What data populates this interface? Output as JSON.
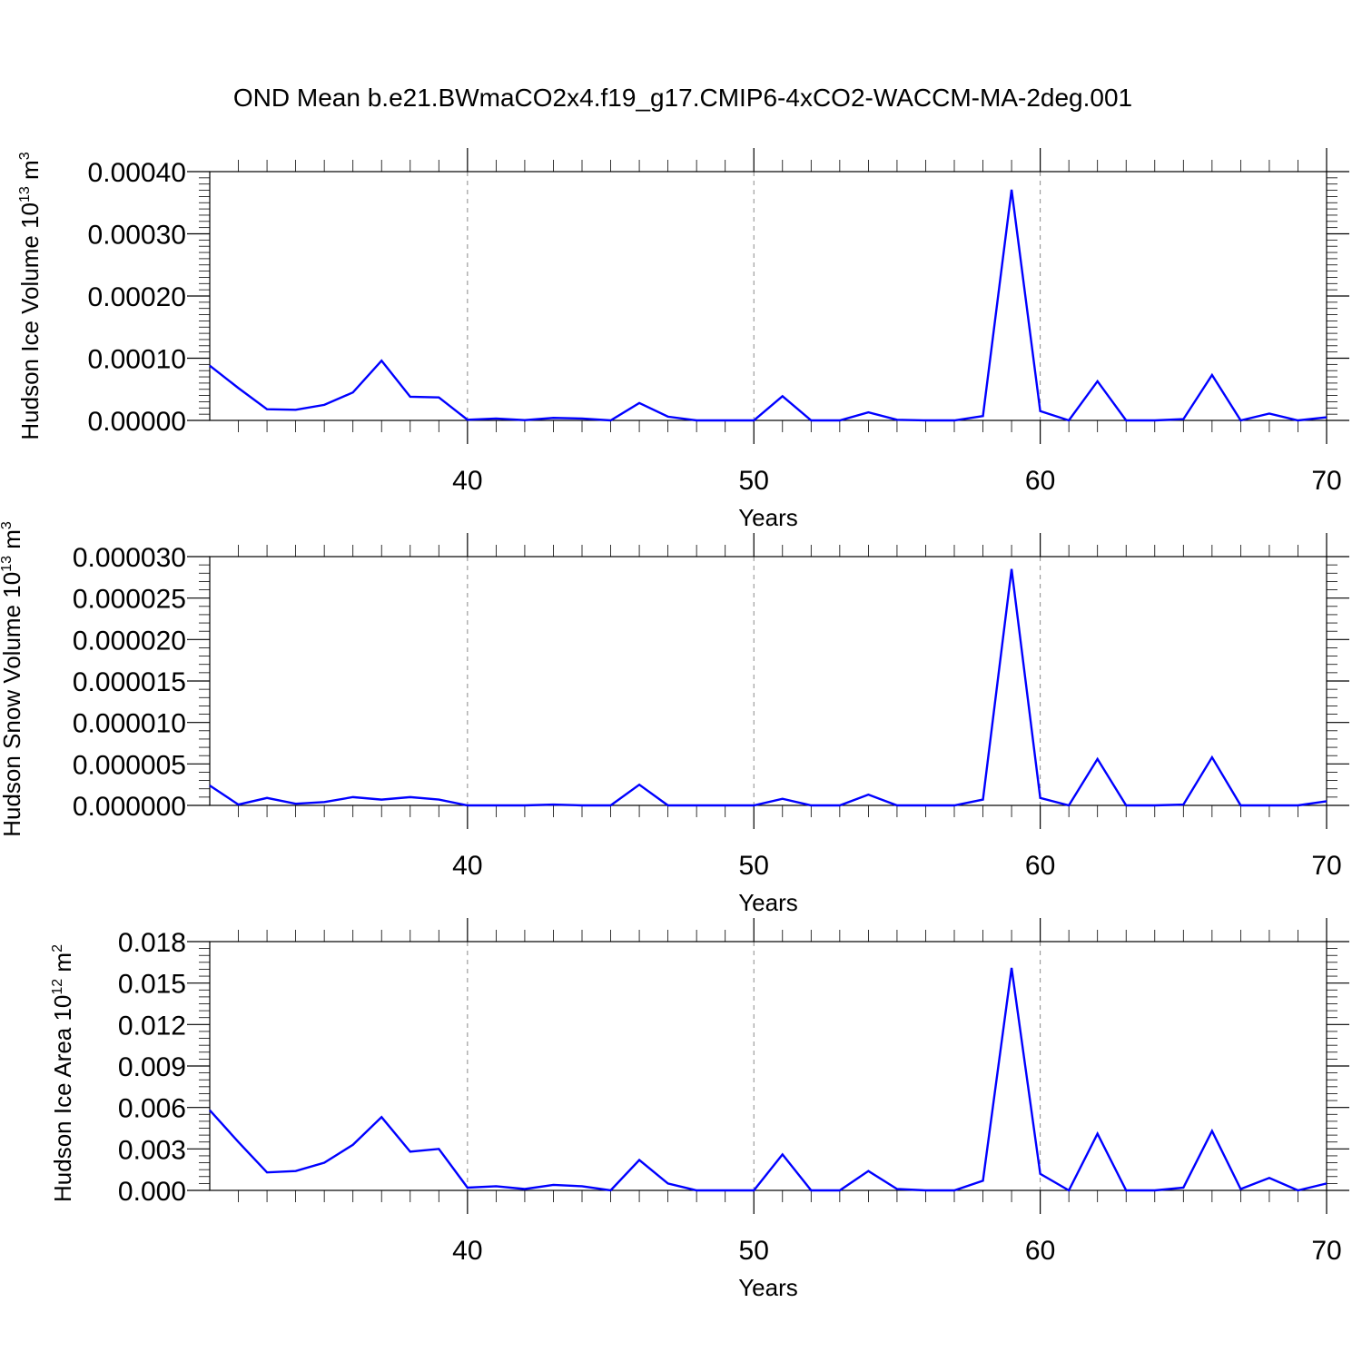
{
  "title": "OND Mean b.e21.BWmaCO2x4.f19_g17.CMIP6-4xCO2-WACCM-MA-2deg.001",
  "colors": {
    "line": "#0000ff",
    "axis": "#000000",
    "grid": "#8a8a8a"
  },
  "chart_data": [
    {
      "type": "line",
      "xlabel": "Years",
      "ylabel_main": "Hudson Ice Volume 10",
      "ylabel_exp": "13",
      "ylabel_unit": "m",
      "ylabel_unit_exp": "3",
      "xlim": [
        31,
        70
      ],
      "ylim": [
        0,
        0.0004
      ],
      "x_ticks": [
        40,
        50,
        60,
        70
      ],
      "x_tick_labels": [
        "40",
        "50",
        "60",
        "70"
      ],
      "y_ticks": [
        0,
        0.0001,
        0.0002,
        0.0003,
        0.0004
      ],
      "y_tick_labels": [
        "0.00000",
        "0.00010",
        "0.00020",
        "0.00030",
        "0.00040"
      ],
      "grid": "vertical dashed at x ticks",
      "series": [
        {
          "x": [
            31,
            32,
            33,
            34,
            35,
            36,
            37,
            38,
            39,
            40,
            41,
            42,
            43,
            44,
            45,
            46,
            47,
            48,
            49,
            50,
            51,
            52,
            53,
            54,
            55,
            56,
            57,
            58,
            59,
            60,
            61,
            62,
            63,
            64,
            65,
            66,
            67,
            68,
            69,
            70
          ],
          "values": [
            8.8e-05,
            5.2e-05,
            1.8e-05,
            1.7e-05,
            2.5e-05,
            4.5e-05,
            9.6e-05,
            3.8e-05,
            3.7e-05,
            1e-06,
            3e-06,
            5e-07,
            4e-06,
            3e-06,
            0.0,
            2.8e-05,
            6e-06,
            0.0,
            0.0,
            0.0,
            3.9e-05,
            0.0,
            0.0,
            1.3e-05,
            1e-06,
            0.0,
            0.0,
            7e-06,
            0.000371,
            1.5e-05,
            0.0,
            6.3e-05,
            0.0,
            0.0,
            2e-06,
            7.3e-05,
            0.0,
            1.1e-05,
            0.0,
            5e-06
          ]
        }
      ]
    },
    {
      "type": "line",
      "xlabel": "Years",
      "ylabel_main": "Hudson Snow Volume 10",
      "ylabel_exp": "13",
      "ylabel_unit": "m",
      "ylabel_unit_exp": "3",
      "xlim": [
        31,
        70
      ],
      "ylim": [
        0,
        3e-05
      ],
      "x_ticks": [
        40,
        50,
        60,
        70
      ],
      "x_tick_labels": [
        "40",
        "50",
        "60",
        "70"
      ],
      "y_ticks": [
        0,
        5e-06,
        1e-05,
        1.5e-05,
        2e-05,
        2.5e-05,
        3e-05
      ],
      "y_tick_labels": [
        "0.000000",
        "0.000005",
        "0.000010",
        "0.000015",
        "0.000020",
        "0.000025",
        "0.000030"
      ],
      "grid": "vertical dashed at x ticks",
      "series": [
        {
          "x": [
            31,
            32,
            33,
            34,
            35,
            36,
            37,
            38,
            39,
            40,
            41,
            42,
            43,
            44,
            45,
            46,
            47,
            48,
            49,
            50,
            51,
            52,
            53,
            54,
            55,
            56,
            57,
            58,
            59,
            60,
            61,
            62,
            63,
            64,
            65,
            66,
            67,
            68,
            69,
            70
          ],
          "values": [
            2.4e-06,
            1e-07,
            9e-07,
            2e-07,
            4e-07,
            1e-06,
            7e-07,
            1e-06,
            7e-07,
            0.0,
            0.0,
            0.0,
            1e-07,
            0.0,
            0.0,
            2.5e-06,
            0.0,
            0.0,
            0.0,
            0.0,
            8e-07,
            0.0,
            0.0,
            1.3e-06,
            0.0,
            0.0,
            0.0,
            7e-07,
            2.85e-05,
            9e-07,
            0.0,
            5.6e-06,
            0.0,
            0.0,
            1e-07,
            5.8e-06,
            0.0,
            0.0,
            0.0,
            5e-07
          ]
        }
      ]
    },
    {
      "type": "line",
      "xlabel": "Years",
      "ylabel_main": "Hudson Ice Area 10",
      "ylabel_exp": "12",
      "ylabel_unit": "m",
      "ylabel_unit_exp": "2",
      "xlim": [
        31,
        70
      ],
      "ylim": [
        0,
        0.018
      ],
      "x_ticks": [
        40,
        50,
        60,
        70
      ],
      "x_tick_labels": [
        "40",
        "50",
        "60",
        "70"
      ],
      "y_ticks": [
        0,
        0.003,
        0.006,
        0.009,
        0.012,
        0.015,
        0.018
      ],
      "y_tick_labels": [
        "0.000",
        "0.003",
        "0.006",
        "0.009",
        "0.012",
        "0.015",
        "0.018"
      ],
      "grid": "vertical dashed at x ticks",
      "series": [
        {
          "x": [
            31,
            32,
            33,
            34,
            35,
            36,
            37,
            38,
            39,
            40,
            41,
            42,
            43,
            44,
            45,
            46,
            47,
            48,
            49,
            50,
            51,
            52,
            53,
            54,
            55,
            56,
            57,
            58,
            59,
            60,
            61,
            62,
            63,
            64,
            65,
            66,
            67,
            68,
            69,
            70
          ],
          "values": [
            0.0058,
            0.0035,
            0.0013,
            0.0014,
            0.002,
            0.0033,
            0.0053,
            0.0028,
            0.003,
            0.0002,
            0.0003,
            0.0001,
            0.0004,
            0.0003,
            0.0,
            0.0022,
            0.0005,
            0.0,
            0.0,
            0.0,
            0.0026,
            0.0,
            0.0,
            0.0014,
            0.0001,
            0.0,
            0.0,
            0.0007,
            0.0161,
            0.0012,
            0.0,
            0.0041,
            0.0,
            0.0,
            0.0002,
            0.0043,
            0.0001,
            0.0009,
            0.0,
            0.0005
          ]
        }
      ]
    }
  ]
}
